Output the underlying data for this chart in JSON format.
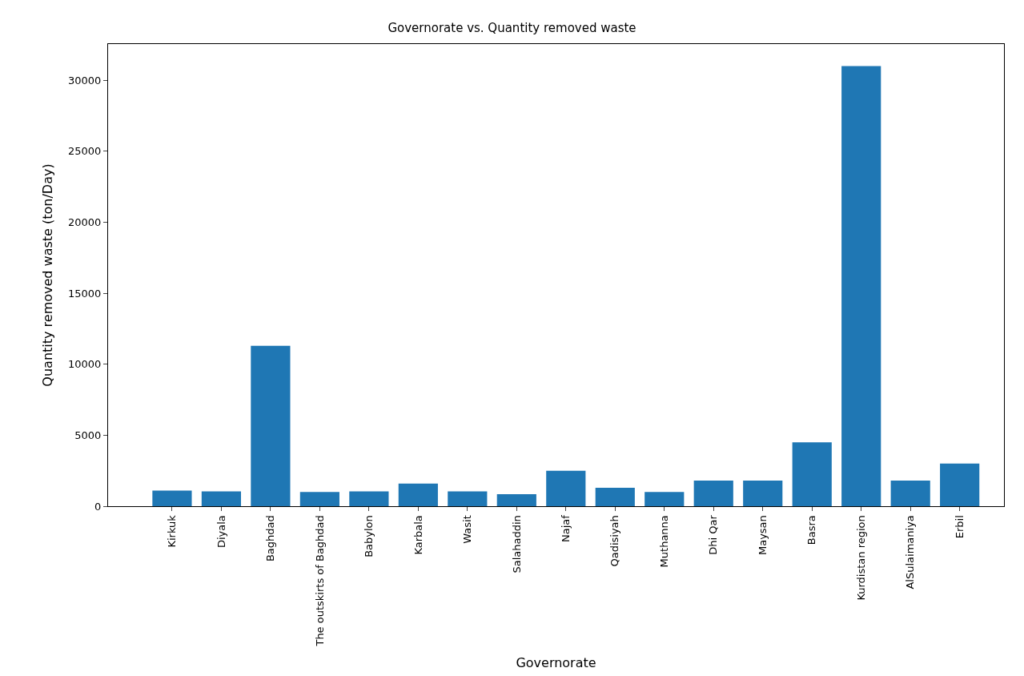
{
  "chart_data": {
    "type": "bar",
    "title": "Governorate vs. Quantity removed waste",
    "xlabel": "Governorate",
    "ylabel": "Quantity removed waste (ton/Day)",
    "categories": [
      "Kirkuk",
      "Diyala",
      "Baghdad",
      "The outskirts of Baghdad",
      "Babylon",
      "Karbala",
      "Wasit",
      "Salahaddin",
      "Najaf",
      "Qadisiyah",
      "Muthanna",
      "Dhi Qar",
      "Maysan",
      "Basra",
      "Kurdistan region",
      "AlSulaimaniya",
      "Erbil"
    ],
    "values": [
      1100,
      1050,
      11300,
      1000,
      1050,
      1600,
      1050,
      850,
      2500,
      1300,
      1000,
      1800,
      1800,
      4500,
      31000,
      1800,
      3000
    ],
    "color": "#1f77b4",
    "ylim": [
      0,
      32550
    ],
    "yticks": [
      0,
      5000,
      10000,
      15000,
      20000,
      25000,
      30000
    ],
    "grid": false
  }
}
